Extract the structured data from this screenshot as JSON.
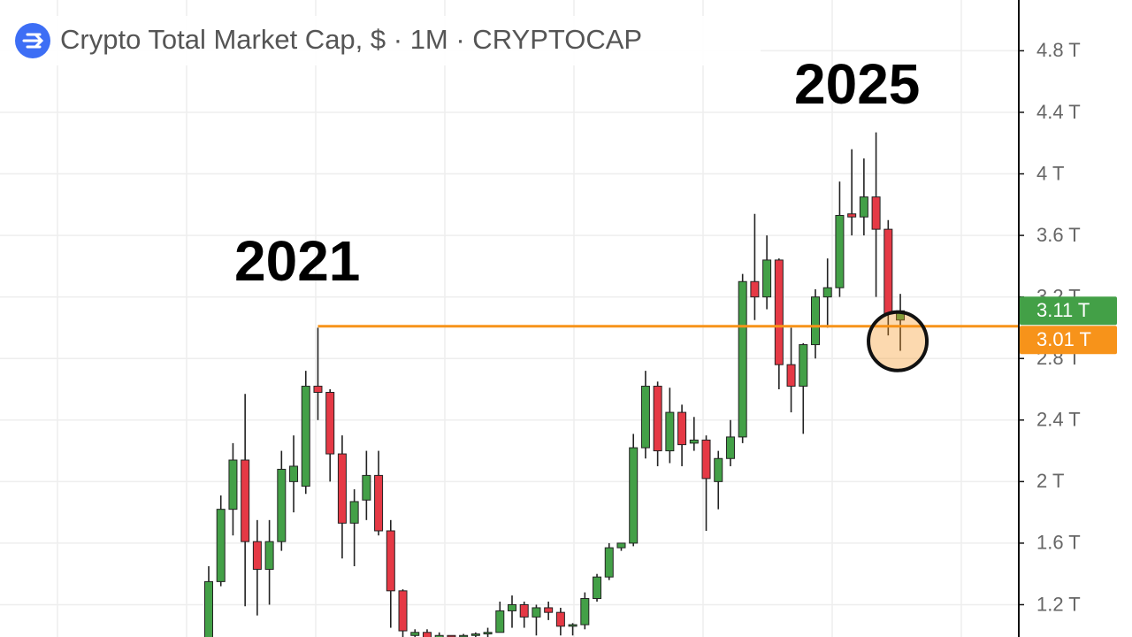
{
  "chart_data": {
    "type": "candlestick",
    "title": "Crypto Total Market Cap, $ · 1M · CRYPTOCAP",
    "annotations": [
      "2021",
      "2025"
    ],
    "ylim": [
      0.99,
      5.13
    ],
    "yticks": [
      {
        "value": 1.2,
        "label": "1.2 T"
      },
      {
        "value": 1.6,
        "label": "1.6 T"
      },
      {
        "value": 2,
        "label": "2 T"
      },
      {
        "value": 2.4,
        "label": "2.4 T"
      },
      {
        "value": 2.8,
        "label": "2.8 T"
      },
      {
        "value": 3.2,
        "label": "3.2 T"
      },
      {
        "value": 3.6,
        "label": "3.6 T"
      },
      {
        "value": 4,
        "label": "4 T"
      },
      {
        "value": 4.4,
        "label": "4.4 T"
      },
      {
        "value": 4.8,
        "label": "4.8 T"
      }
    ],
    "grid": true,
    "up_color": "#43a047",
    "down_color": "#e53945",
    "open": [
      0.95,
      1.35,
      1.82,
      2.14,
      1.61,
      1.43,
      1.61,
      2.0,
      1.97,
      2.62,
      2.58,
      2.18,
      1.73,
      1.88,
      2.04,
      1.68,
      1.29,
      1.0,
      1.02,
      0.98,
      1.0,
      0.99,
      1.0,
      1.01,
      1.02,
      1.16,
      1.2,
      1.12,
      1.18,
      1.15,
      1.06,
      1.07,
      1.24,
      1.38,
      1.57,
      1.6,
      2.22,
      2.62,
      2.2,
      2.45,
      2.25,
      2.27,
      2.0,
      2.15,
      2.29,
      3.3,
      3.2,
      3.44,
      2.76,
      2.62,
      2.89,
      3.2,
      3.26,
      3.74,
      3.72,
      3.85,
      3.64,
      3.05
    ],
    "high": [
      1.45,
      1.91,
      2.25,
      2.57,
      1.75,
      1.75,
      2.2,
      2.3,
      2.72,
      3.0,
      2.6,
      2.3,
      1.95,
      2.2,
      2.2,
      1.75,
      1.3,
      1.04,
      1.04,
      1.02,
      1.0,
      1.01,
      1.02,
      1.05,
      1.22,
      1.26,
      1.22,
      1.2,
      1.22,
      1.18,
      1.08,
      1.28,
      1.4,
      1.6,
      1.6,
      2.31,
      2.72,
      2.65,
      2.61,
      2.5,
      2.42,
      2.3,
      2.2,
      2.4,
      3.35,
      3.74,
      3.6,
      3.45,
      3.0,
      2.9,
      3.25,
      3.45,
      3.95,
      4.16,
      4.1,
      4.27,
      3.7,
      3.22
    ],
    "low": [
      0.9,
      1.32,
      1.65,
      1.19,
      1.13,
      1.2,
      1.55,
      1.8,
      1.92,
      2.4,
      2.0,
      1.5,
      1.45,
      1.75,
      1.65,
      1.05,
      0.95,
      0.95,
      0.95,
      0.95,
      0.95,
      0.95,
      0.97,
      0.97,
      1.02,
      1.05,
      1.05,
      1.0,
      1.1,
      1.0,
      1.0,
      1.04,
      1.22,
      1.36,
      1.55,
      1.58,
      2.15,
      2.1,
      2.12,
      2.1,
      2.2,
      1.68,
      1.82,
      2.1,
      2.25,
      3.05,
      3.12,
      2.6,
      2.45,
      2.31,
      2.8,
      3.0,
      3.2,
      3.6,
      3.6,
      3.2,
      2.95,
      2.85
    ],
    "close": [
      1.35,
      1.82,
      2.14,
      1.61,
      1.43,
      1.61,
      2.08,
      2.1,
      2.62,
      2.58,
      2.18,
      1.73,
      1.87,
      2.04,
      1.68,
      1.29,
      1.03,
      1.02,
      0.98,
      1.0,
      0.99,
      1.0,
      1.01,
      1.02,
      1.16,
      1.2,
      1.12,
      1.18,
      1.15,
      1.06,
      1.07,
      1.24,
      1.38,
      1.57,
      1.6,
      2.22,
      2.62,
      2.2,
      2.45,
      2.24,
      2.27,
      2.02,
      2.15,
      2.29,
      3.3,
      3.2,
      3.44,
      2.76,
      2.62,
      2.89,
      3.2,
      3.26,
      3.73,
      3.72,
      3.85,
      3.64,
      3.09,
      3.11
    ],
    "price_labels": [
      {
        "value": 3.11,
        "label": "3.11 T",
        "color": "#43a047"
      },
      {
        "value": 3.01,
        "label": "3.01 T",
        "color": "#f7931a"
      }
    ],
    "horizontal_line": {
      "value": 3.01,
      "color": "#f7931a"
    }
  }
}
